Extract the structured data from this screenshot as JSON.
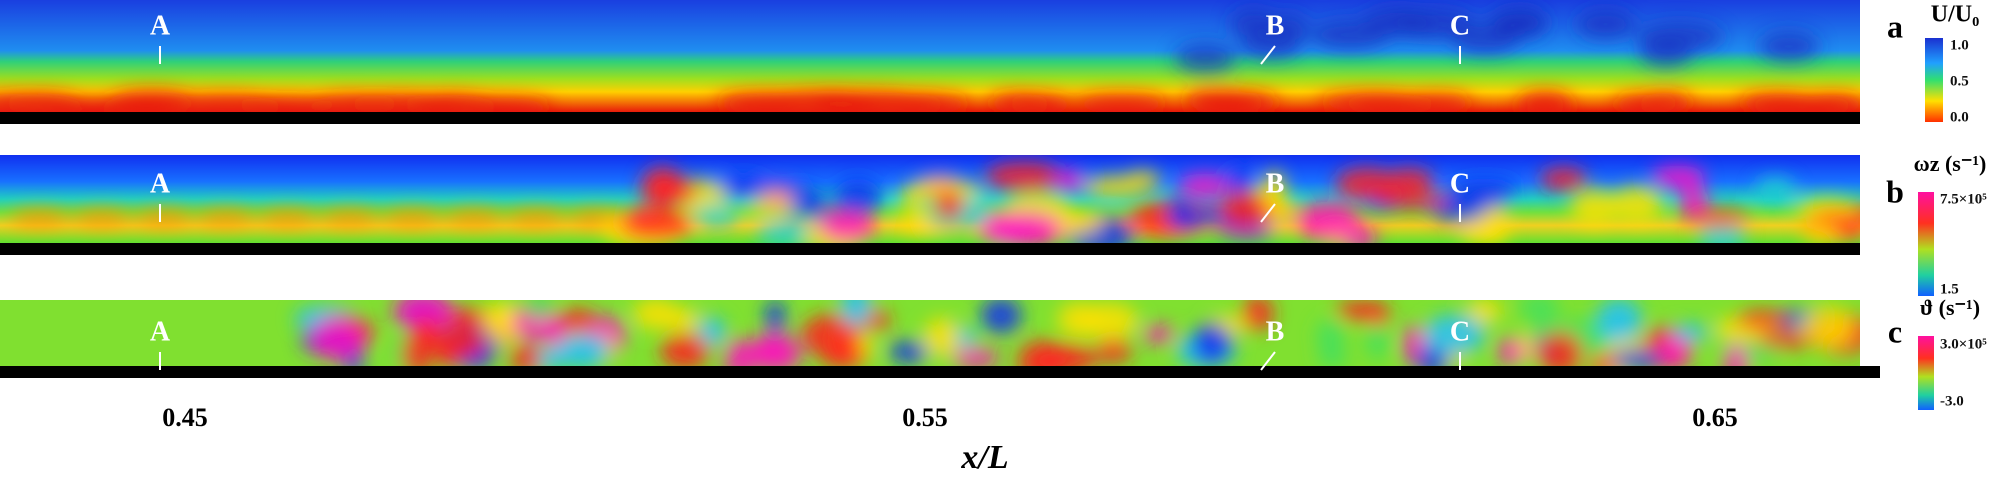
{
  "panels": [
    {
      "label": "a",
      "markers": [
        "A",
        "B",
        "C"
      ],
      "colorbar": {
        "title": "U/U₀",
        "ticks": [
          "1.0",
          "0.5",
          "0.0"
        ]
      }
    },
    {
      "label": "b",
      "markers": [
        "A",
        "B",
        "C"
      ],
      "colorbar": {
        "title": "ωz (s⁻¹)",
        "ticks": [
          "7.5×10⁵",
          "1.5"
        ]
      }
    },
    {
      "label": "c",
      "markers": [
        "A",
        "B",
        "C"
      ],
      "colorbar": {
        "title": "ϑ (s⁻¹)",
        "ticks": [
          "3.0×10⁵",
          "-3.0"
        ]
      }
    }
  ],
  "x_axis": {
    "label": "x/L",
    "ticks": [
      "0.45",
      "0.55",
      "0.65"
    ]
  }
}
